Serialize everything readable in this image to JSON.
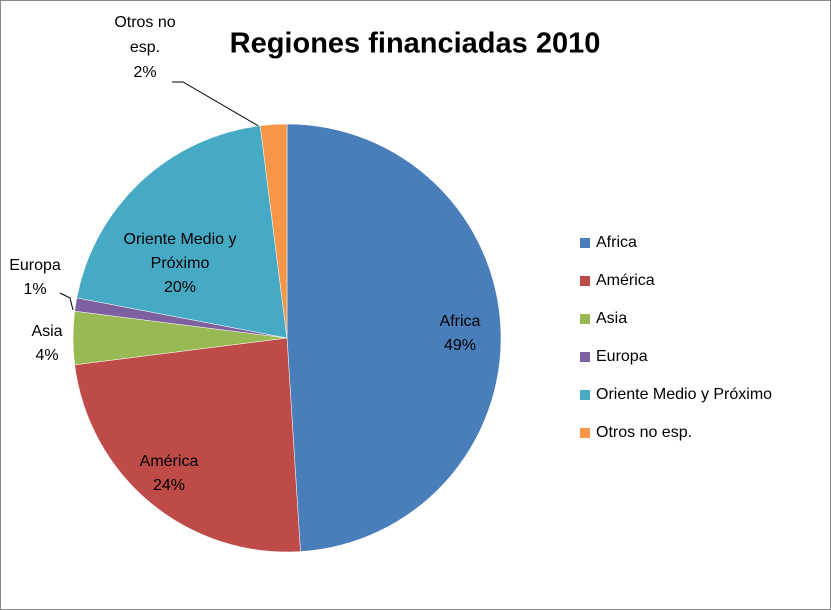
{
  "chart_data": {
    "type": "pie",
    "title": "Regiones financiadas 2010",
    "categories": [
      "Africa",
      "América",
      "Asia",
      "Europa",
      "Oriente Medio y Próximo",
      "Otros no esp."
    ],
    "values": [
      49,
      24,
      4,
      1,
      20,
      2
    ],
    "value_labels": [
      "49%",
      "24%",
      "4%",
      "1%",
      "20%",
      "2%"
    ],
    "colors": [
      "#4a7ebb",
      "#be4b48",
      "#98b954",
      "#7d60a0",
      "#46aac5",
      "#f79646"
    ]
  }
}
